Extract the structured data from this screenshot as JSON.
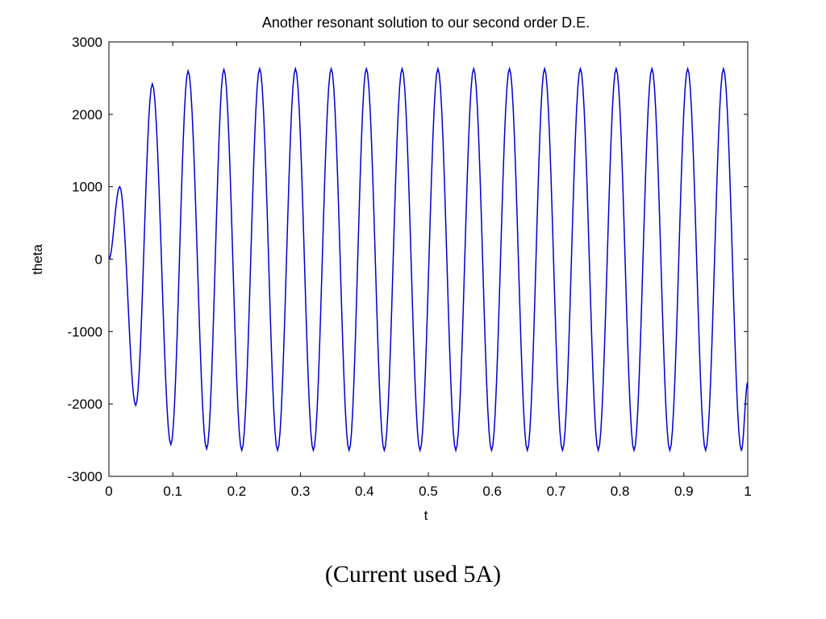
{
  "caption": "(Current used 5A)",
  "chart_data": {
    "type": "line",
    "title": "Another resonant solution to our second order D.E.",
    "xlabel": "t",
    "ylabel": "theta",
    "xlim": [
      0,
      1
    ],
    "ylim": [
      -3000,
      3000
    ],
    "x_ticks": [
      0,
      0.1,
      0.2,
      0.3,
      0.4,
      0.5,
      0.6,
      0.7,
      0.8,
      0.9,
      1
    ],
    "x_tick_labels": [
      "0",
      "0.1",
      "0.2",
      "0.3",
      "0.4",
      "0.5",
      "0.6",
      "0.7",
      "0.8",
      "0.9",
      "1"
    ],
    "y_ticks": [
      -3000,
      -2000,
      -1000,
      0,
      1000,
      2000,
      3000
    ],
    "y_tick_labels": [
      "-3000",
      "-2000",
      "-1000",
      "0",
      "1000",
      "2000",
      "3000"
    ],
    "grid": false,
    "series": [
      {
        "color": "#0000cc",
        "x": [
          0,
          0.017,
          0.042,
          0.068,
          0.097,
          0.124,
          0.153,
          0.18,
          0.208,
          0.236,
          0.264,
          0.292,
          0.32,
          0.348,
          0.376,
          0.403,
          0.431,
          0.459,
          0.487,
          0.515,
          0.543,
          0.571,
          0.599,
          0.627,
          0.655,
          0.682,
          0.71,
          0.738,
          0.766,
          0.794,
          0.822,
          0.85,
          0.878,
          0.906,
          0.934,
          0.962,
          0.99,
          1.0
        ],
        "y": [
          0,
          1000,
          -2020,
          2420,
          -2560,
          2600,
          -2620,
          2620,
          -2640,
          2630,
          -2640,
          2630,
          -2640,
          2630,
          -2640,
          2630,
          -2640,
          2630,
          -2640,
          2630,
          -2640,
          2630,
          -2640,
          2630,
          -2640,
          2630,
          -2640,
          2630,
          -2640,
          2630,
          -2640,
          2630,
          -2640,
          2630,
          -2640,
          2630,
          -2640,
          -1700
        ]
      }
    ]
  }
}
